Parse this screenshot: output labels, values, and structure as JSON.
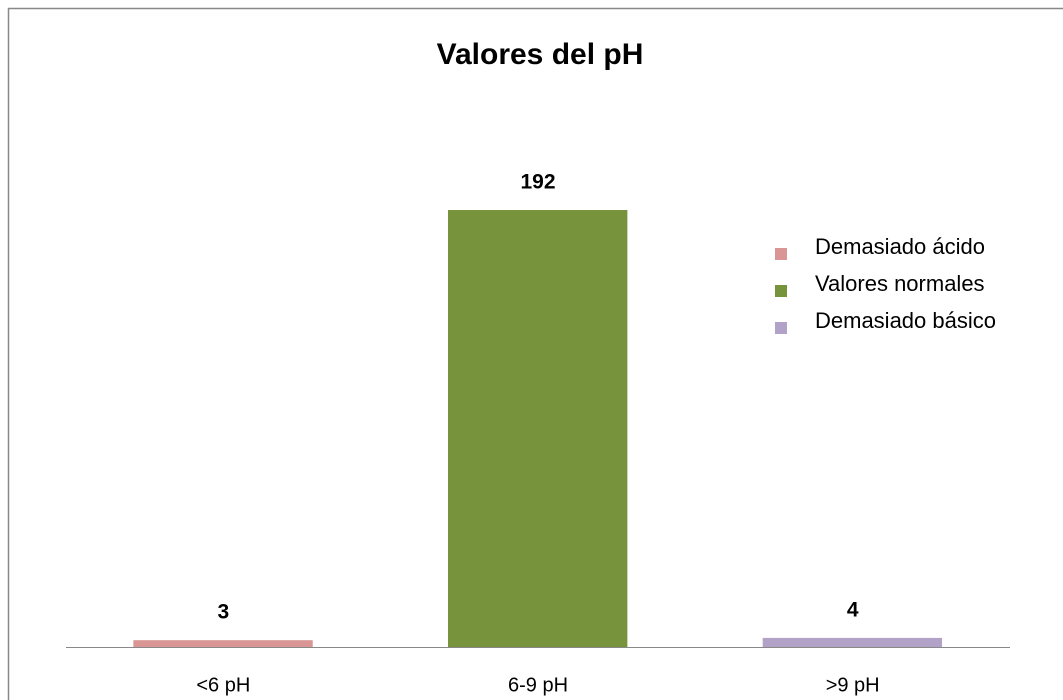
{
  "chart_data": {
    "type": "bar",
    "title": "Valores del pH",
    "categories": [
      "<6 pH",
      "6-9 pH",
      ">9 pH"
    ],
    "series": [
      {
        "name": "Demasiado ácido",
        "color": "#d99694",
        "values": [
          3,
          null,
          null
        ]
      },
      {
        "name": "Valores normales",
        "color": "#77933c",
        "values": [
          null,
          192,
          null
        ]
      },
      {
        "name": "Demasiado básico",
        "color": "#b3a2c7",
        "values": [
          null,
          null,
          4
        ]
      }
    ],
    "legend": "right"
  }
}
